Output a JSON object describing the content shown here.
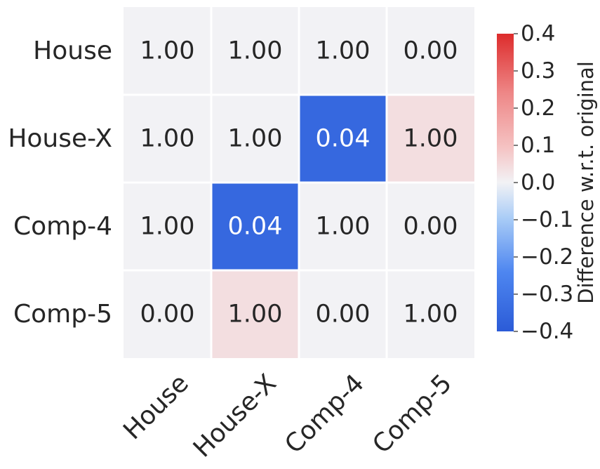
{
  "chart_data": {
    "type": "heatmap",
    "title": "",
    "xlabel": "",
    "ylabel": "",
    "rows": [
      "House",
      "House-X",
      "Comp-4",
      "Comp-5"
    ],
    "columns": [
      "House",
      "House-X",
      "Comp-4",
      "Comp-5"
    ],
    "annotations": [
      [
        "1.00",
        "1.00",
        "1.00",
        "0.00"
      ],
      [
        "1.00",
        "1.00",
        "0.04",
        "1.00"
      ],
      [
        "1.00",
        "0.04",
        "1.00",
        "0.00"
      ],
      [
        "0.00",
        "1.00",
        "0.00",
        "1.00"
      ]
    ],
    "difference": [
      [
        0.0,
        0.0,
        0.0,
        0.0
      ],
      [
        0.0,
        0.0,
        -0.35,
        0.04
      ],
      [
        0.0,
        -0.35,
        0.0,
        0.0
      ],
      [
        0.0,
        0.04,
        0.0,
        0.0
      ]
    ],
    "colorbar": {
      "label": "Difference w.r.t. original",
      "range": [
        -0.4,
        0.4
      ],
      "ticks": [
        "0.4",
        "0.3",
        "0.2",
        "0.1",
        "0.0",
        "−0.1",
        "−0.2",
        "−0.3",
        "−0.4"
      ],
      "colormap": "coolwarm",
      "colors": {
        "low": "#2b5bd7",
        "mid": "#f2f2f5",
        "high": "#dd2c2c"
      }
    },
    "grid": false,
    "legend": "colorbar-right"
  }
}
